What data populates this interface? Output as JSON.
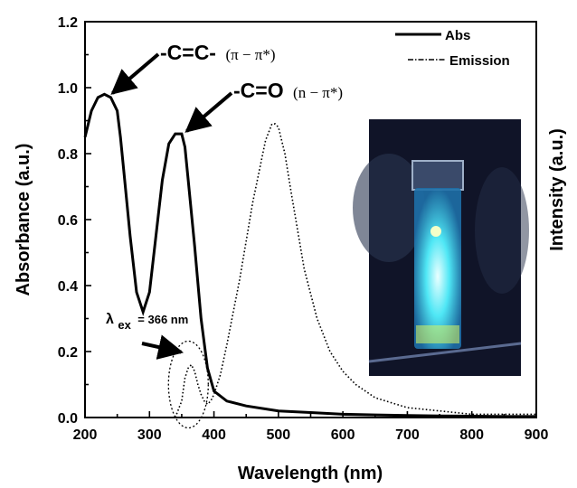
{
  "chart_data": {
    "type": "line",
    "xlabel": "Wavelength (nm)",
    "ylabel": "Absorbance (a.u.)",
    "y2label": "Intensity (a.u.)",
    "xlim": [
      200,
      900
    ],
    "ylim": [
      0,
      1.2
    ],
    "x_ticks": [
      "200",
      "300",
      "400",
      "500",
      "600",
      "700",
      "800",
      "900"
    ],
    "y_ticks": [
      "0.0",
      "0.2",
      "0.4",
      "0.6",
      "0.8",
      "1.0",
      "1.2"
    ],
    "grid": false,
    "legend_position": "top-right",
    "series": [
      {
        "name": "Abs",
        "style": "solid",
        "x": [
          200,
          210,
          220,
          230,
          240,
          250,
          255,
          260,
          270,
          280,
          290,
          300,
          310,
          320,
          330,
          340,
          350,
          355,
          360,
          370,
          380,
          390,
          400,
          420,
          450,
          500,
          550,
          600,
          650,
          700,
          750,
          800,
          850,
          900
        ],
        "y": [
          0.85,
          0.93,
          0.97,
          0.98,
          0.97,
          0.93,
          0.85,
          0.75,
          0.55,
          0.38,
          0.32,
          0.38,
          0.55,
          0.72,
          0.83,
          0.86,
          0.86,
          0.82,
          0.72,
          0.52,
          0.3,
          0.15,
          0.08,
          0.05,
          0.035,
          0.02,
          0.015,
          0.01,
          0.008,
          0.006,
          0.005,
          0.004,
          0.003,
          0.003
        ]
      },
      {
        "name": "Emission",
        "style": "dotted",
        "x": [
          340,
          350,
          355,
          360,
          365,
          370,
          375,
          380,
          385,
          390,
          395,
          400,
          410,
          420,
          440,
          460,
          480,
          490,
          495,
          500,
          510,
          520,
          540,
          560,
          580,
          600,
          620,
          650,
          700,
          750,
          800,
          850,
          900
        ],
        "y": [
          0.0,
          0.05,
          0.12,
          0.15,
          0.16,
          0.14,
          0.1,
          0.07,
          0.05,
          0.04,
          0.05,
          0.07,
          0.13,
          0.22,
          0.42,
          0.65,
          0.84,
          0.89,
          0.89,
          0.88,
          0.8,
          0.68,
          0.45,
          0.3,
          0.2,
          0.14,
          0.1,
          0.06,
          0.03,
          0.02,
          0.01,
          0.01,
          0.01
        ]
      }
    ],
    "annotations": [
      {
        "id": "cc",
        "main": "-C=C-",
        "sub": "(π − π*)",
        "x": 240,
        "y": 0.975
      },
      {
        "id": "co",
        "main": "-C=O",
        "sub": "(n − π*)",
        "x": 355,
        "y": 0.86
      },
      {
        "id": "lex",
        "label": "λex = 366 nm",
        "symbol": "λ",
        "subscript": "ex",
        "rest": "= 366 nm",
        "x": 366,
        "y": 0.16
      }
    ]
  },
  "inset_photo": {
    "content": "cuvette-glowing-blue",
    "colors": {
      "background": "#101428",
      "glow": "#3fe0f0",
      "core": "#bff8ff",
      "bottom_band": "#d8f860"
    }
  }
}
